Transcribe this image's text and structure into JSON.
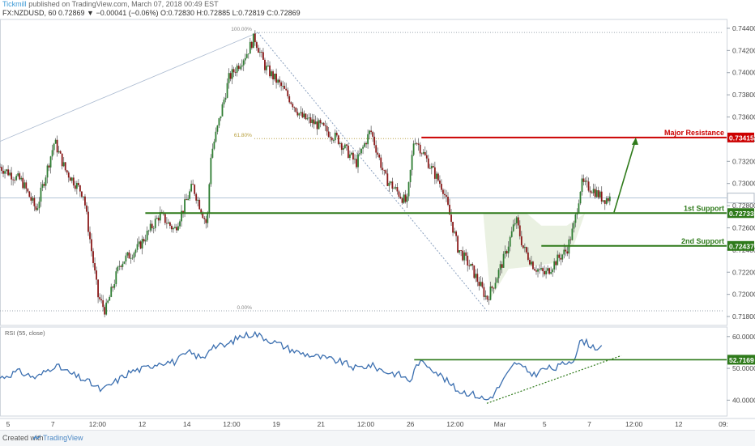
{
  "header": {
    "author": "Tickmill",
    "published": "published on TradingView.com, March 07, 2018 00:49 EST",
    "ohlc": "FX:NZDUSD, 60  0.72869  ▼ −0.00041 (−0.06%)  O:0.72830  H:0.72885  L:0.72819  C:0.72869"
  },
  "footer": {
    "created_with": "Created with",
    "brand": "TradingView"
  },
  "colors": {
    "candle_up": "#2e7d32",
    "candle_down": "#8b1a1a",
    "wick": "#555555",
    "resistance": "#cc0000",
    "support": "#2e7a1a",
    "rsi_line": "#3b6fb0",
    "highlight_fill": "#e6efdd",
    "fib": "#b8a040",
    "diag": "#8aa0bf"
  },
  "chart_data": [
    {
      "type": "candlestick",
      "symbol": "FX:NZDUSD",
      "timeframe": "60",
      "ylim": [
        0.7172,
        0.7448
      ],
      "y_ticks": [
        "0.74400",
        "0.74200",
        "0.74000",
        "0.73800",
        "0.73600",
        "0.73400",
        "0.73200",
        "0.73000",
        "0.72800",
        "0.72600",
        "0.72400",
        "0.72200",
        "0.72000",
        "0.71800"
      ],
      "x_ticks": [
        "5",
        "7",
        "12:00",
        "12",
        "14",
        "12:00",
        "19",
        "21",
        "12:00",
        "26",
        "12:00",
        "Mar",
        "5",
        "7",
        "12:00",
        "12",
        "09:"
      ],
      "x_range": [
        0,
        200
      ],
      "last_price": 0.72869,
      "price_path": [
        [
          0,
          0.7315
        ],
        [
          6,
          0.7302
        ],
        [
          10,
          0.7276
        ],
        [
          15,
          0.7338
        ],
        [
          18,
          0.7312
        ],
        [
          23,
          0.729
        ],
        [
          27,
          0.7198
        ],
        [
          29,
          0.7185
        ],
        [
          33,
          0.7228
        ],
        [
          38,
          0.7242
        ],
        [
          44,
          0.7272
        ],
        [
          48,
          0.7258
        ],
        [
          53,
          0.7298
        ],
        [
          57,
          0.7262
        ],
        [
          58,
          0.7325
        ],
        [
          60,
          0.7352
        ],
        [
          63,
          0.7395
        ],
        [
          68,
          0.7418
        ],
        [
          70,
          0.7432
        ],
        [
          73,
          0.7405
        ],
        [
          78,
          0.7385
        ],
        [
          83,
          0.736
        ],
        [
          88,
          0.7352
        ],
        [
          93,
          0.734
        ],
        [
          98,
          0.7318
        ],
        [
          102,
          0.7348
        ],
        [
          106,
          0.7305
        ],
        [
          110,
          0.729
        ],
        [
          112,
          0.7282
        ],
        [
          114,
          0.7342
        ],
        [
          118,
          0.7318
        ],
        [
          122,
          0.7295
        ],
        [
          126,
          0.7242
        ],
        [
          130,
          0.7222
        ],
        [
          134,
          0.7196
        ],
        [
          136,
          0.721
        ],
        [
          139,
          0.7235
        ],
        [
          142,
          0.7268
        ],
        [
          144,
          0.7242
        ],
        [
          147,
          0.7225
        ],
        [
          150,
          0.7218
        ],
        [
          153,
          0.723
        ],
        [
          156,
          0.724
        ],
        [
          158,
          0.7262
        ],
        [
          160,
          0.73
        ],
        [
          163,
          0.7295
        ],
        [
          166,
          0.7286
        ],
        [
          168,
          0.72869
        ]
      ],
      "levels": [
        {
          "label": "Major Resistance",
          "value": 0.73415,
          "value_label": "0.73415"
        },
        {
          "label": "1st Support",
          "value": 0.72733,
          "value_label": "0.72733"
        },
        {
          "label": "2nd Support",
          "value": 0.72437,
          "value_label": "0.72437"
        }
      ],
      "fib": [
        {
          "label": "100.00%",
          "value": 0.74362
        },
        {
          "label": "61.80%",
          "value": 0.73405
        },
        {
          "label": "0.00%",
          "value": 0.71851
        }
      ]
    },
    {
      "type": "line",
      "title": "RSI (55, close)",
      "ylim": [
        35,
        63
      ],
      "y_ticks": [
        "60.0000",
        "50.0000",
        "40.0000"
      ],
      "level": {
        "value": 52.7169,
        "value_label": "52.7169"
      },
      "rsi_path": [
        [
          0,
          47
        ],
        [
          5,
          49
        ],
        [
          10,
          47
        ],
        [
          15,
          51
        ],
        [
          20,
          48
        ],
        [
          24,
          46
        ],
        [
          28,
          43
        ],
        [
          32,
          46
        ],
        [
          36,
          49
        ],
        [
          40,
          50
        ],
        [
          44,
          52
        ],
        [
          48,
          52
        ],
        [
          52,
          55
        ],
        [
          56,
          53
        ],
        [
          58,
          57
        ],
        [
          62,
          57
        ],
        [
          66,
          60
        ],
        [
          70,
          61
        ],
        [
          74,
          59
        ],
        [
          78,
          57
        ],
        [
          82,
          55
        ],
        [
          86,
          54
        ],
        [
          90,
          53
        ],
        [
          94,
          52
        ],
        [
          98,
          50
        ],
        [
          102,
          51
        ],
        [
          106,
          49
        ],
        [
          110,
          48
        ],
        [
          113,
          46
        ],
        [
          115,
          52
        ],
        [
          118,
          51
        ],
        [
          122,
          47
        ],
        [
          126,
          43
        ],
        [
          130,
          42
        ],
        [
          134,
          40
        ],
        [
          136,
          42
        ],
        [
          139,
          47
        ],
        [
          142,
          52
        ],
        [
          144,
          50
        ],
        [
          147,
          48
        ],
        [
          150,
          50
        ],
        [
          153,
          50
        ],
        [
          156,
          52
        ],
        [
          158,
          53
        ],
        [
          160,
          59
        ],
        [
          163,
          57
        ],
        [
          166,
          56
        ]
      ]
    }
  ]
}
